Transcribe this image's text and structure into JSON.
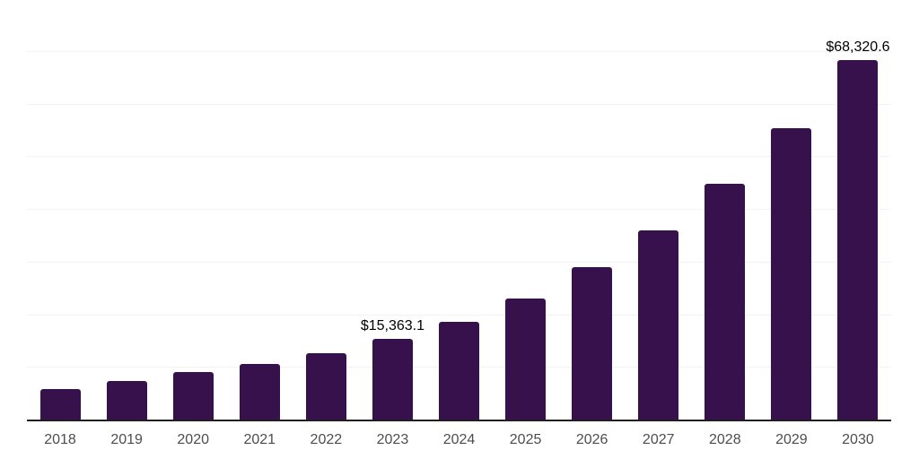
{
  "chart_data": {
    "type": "bar",
    "title": "",
    "xlabel": "",
    "ylabel": "",
    "categories": [
      "2018",
      "2019",
      "2020",
      "2021",
      "2022",
      "2023",
      "2024",
      "2025",
      "2026",
      "2027",
      "2028",
      "2029",
      "2030"
    ],
    "values": [
      5800,
      7350,
      8950,
      10500,
      12600,
      15363.1,
      18600,
      23050,
      28900,
      36000,
      44750,
      55250,
      68320.6
    ],
    "labeled_points": [
      {
        "category": "2023",
        "label": "$15,363.1"
      },
      {
        "category": "2030",
        "label": "$68,320.6"
      }
    ],
    "ylim": [
      0,
      80000
    ],
    "gridline_interval": 10000,
    "grid": "horizontal",
    "legend": "none",
    "y_axis_labels_visible": false,
    "currency_unit": "$"
  },
  "colors": {
    "bar": "#36114C",
    "grid": "#f2f2f2",
    "axis": "#1f1f1f",
    "tick_label": "#4d4d4d",
    "data_label": "#000000",
    "background": "#ffffff"
  }
}
